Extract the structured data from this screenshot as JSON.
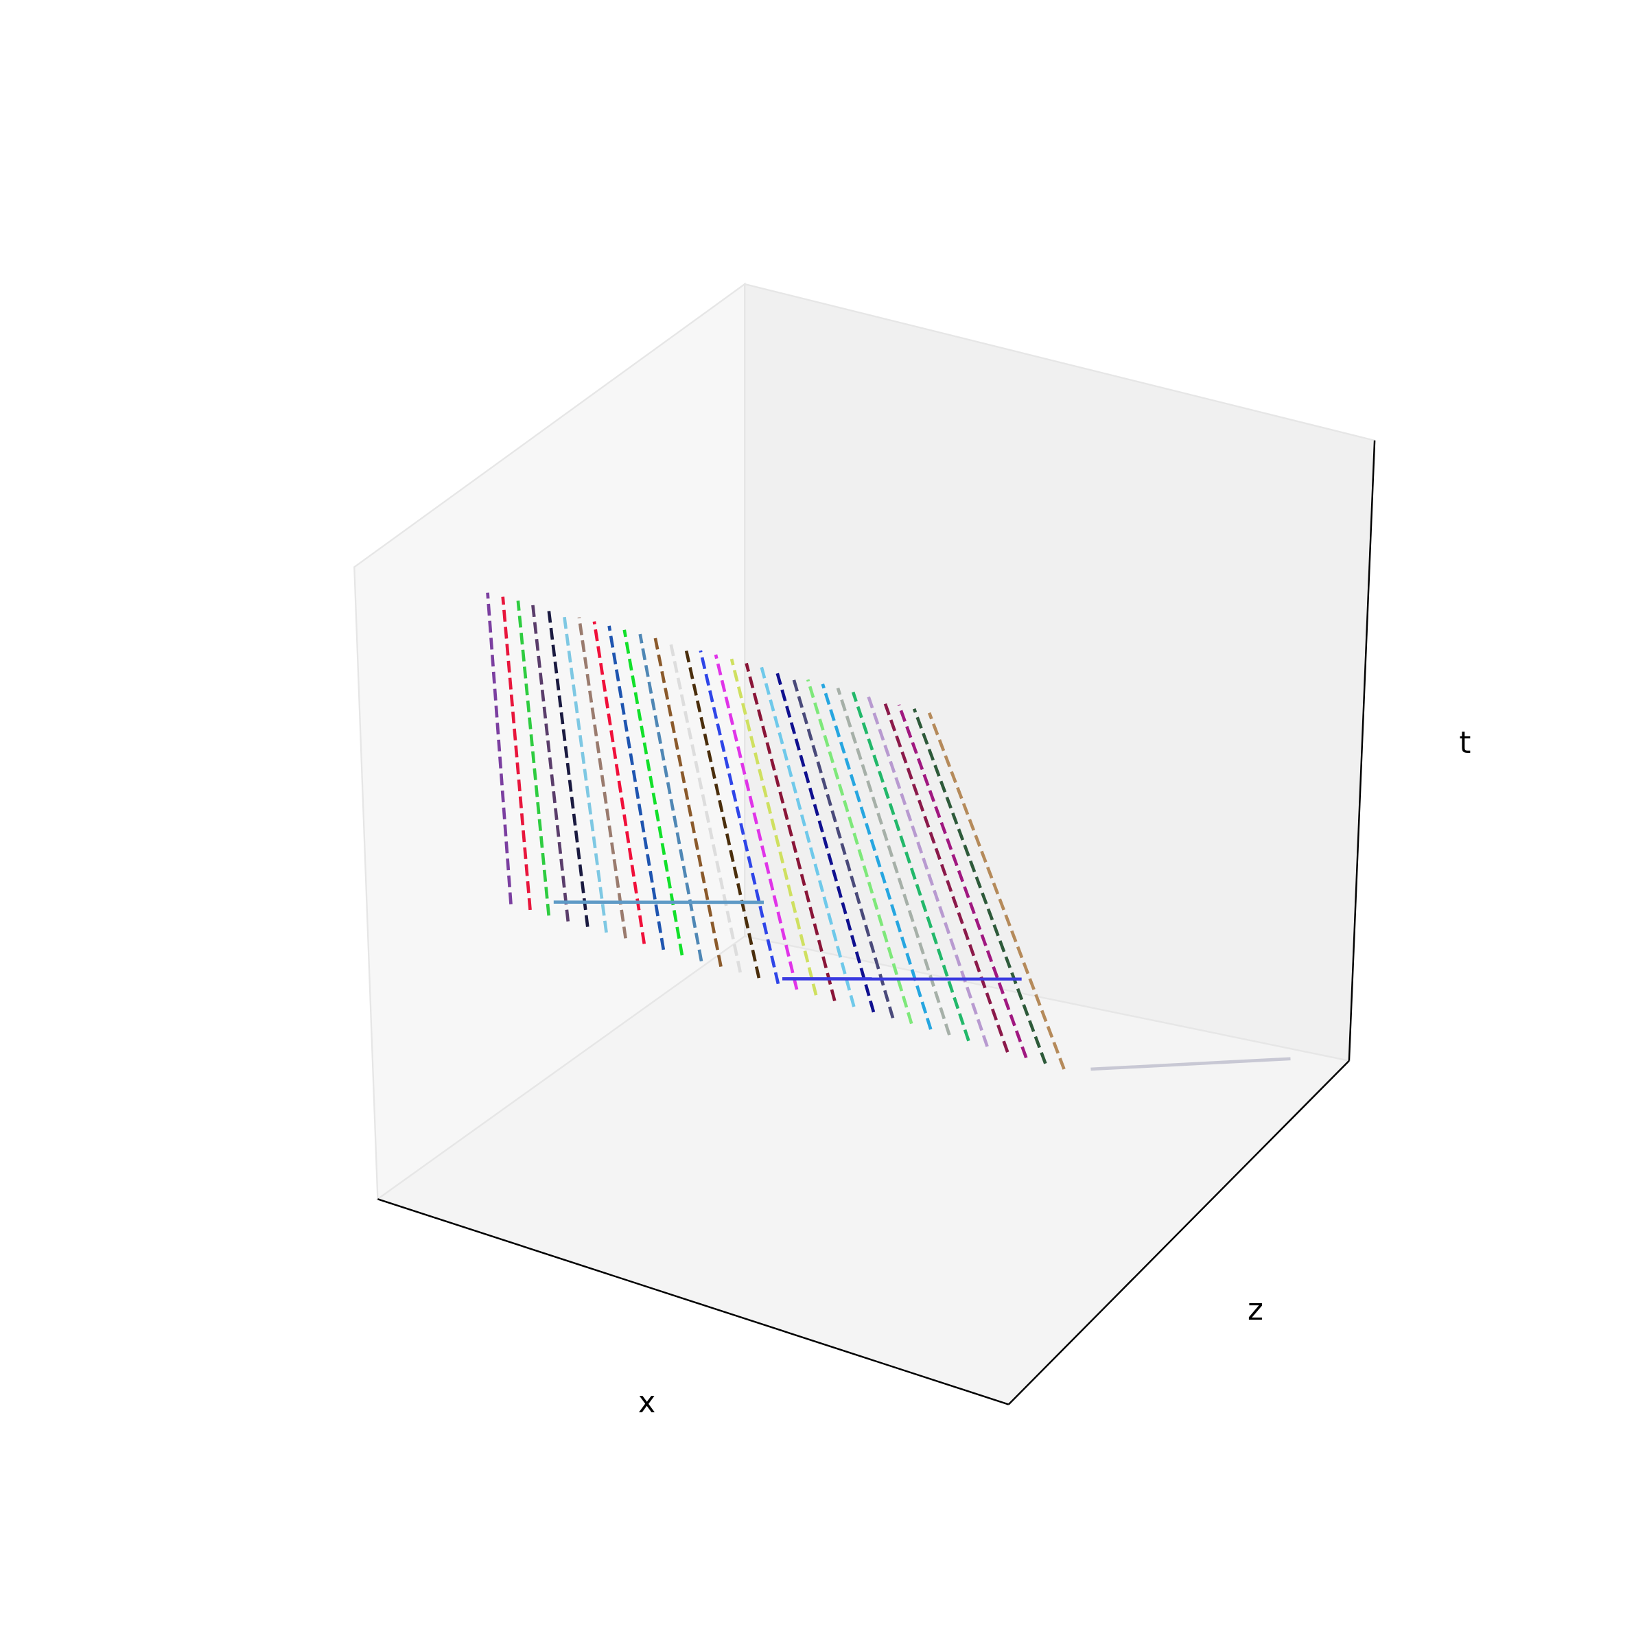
{
  "chart_data": {
    "type": "line3d",
    "xlabel": "x",
    "zlabel": "z",
    "tlabel": "t",
    "xlim": [
      0,
      1
    ],
    "zlim": [
      0,
      1
    ],
    "tlim": [
      0,
      1
    ],
    "series": [
      {
        "color": "#7b3fa0",
        "style": "dashed",
        "x": [
          0.033,
          0.008
        ],
        "z": [
          0.33,
          0.308
        ],
        "t": [
          0.3,
          0.8
        ]
      },
      {
        "color": "#e8163c",
        "style": "dashed",
        "x": [
          0.063,
          0.031
        ],
        "z": [
          0.331,
          0.31
        ],
        "t": [
          0.3,
          0.8
        ]
      },
      {
        "color": "#2ecc40",
        "style": "dashed",
        "x": [
          0.092,
          0.054
        ],
        "z": [
          0.332,
          0.312
        ],
        "t": [
          0.3,
          0.8
        ]
      },
      {
        "color": "#5a3d6b",
        "style": "dashed",
        "x": [
          0.122,
          0.077
        ],
        "z": [
          0.333,
          0.313
        ],
        "t": [
          0.3,
          0.8
        ]
      },
      {
        "color": "#1a1a40",
        "style": "dashed",
        "x": [
          0.152,
          0.101
        ],
        "z": [
          0.335,
          0.315
        ],
        "t": [
          0.3,
          0.8
        ]
      },
      {
        "color": "#7ec8e3",
        "style": "dashed",
        "x": [
          0.181,
          0.124
        ],
        "z": [
          0.336,
          0.317
        ],
        "t": [
          0.3,
          0.8
        ]
      },
      {
        "color": "#9a7b6e",
        "style": "dashed",
        "x": [
          0.211,
          0.147
        ],
        "z": [
          0.337,
          0.319
        ],
        "t": [
          0.3,
          0.8
        ]
      },
      {
        "color": "#f0103a",
        "style": "dashed",
        "x": [
          0.24,
          0.17
        ],
        "z": [
          0.338,
          0.321
        ],
        "t": [
          0.3,
          0.8
        ]
      },
      {
        "color": "#1f55b0",
        "style": "dashed",
        "x": [
          0.27,
          0.193
        ],
        "z": [
          0.339,
          0.322
        ],
        "t": [
          0.3,
          0.8
        ]
      },
      {
        "color": "#12e02a",
        "style": "dashed",
        "x": [
          0.299,
          0.216
        ],
        "z": [
          0.34,
          0.324
        ],
        "t": [
          0.3,
          0.8
        ]
      },
      {
        "color": "#4f87b5",
        "style": "dashed",
        "x": [
          0.329,
          0.24
        ],
        "z": [
          0.341,
          0.326
        ],
        "t": [
          0.3,
          0.8
        ]
      },
      {
        "color": "#8b5a2b",
        "style": "dashed",
        "x": [
          0.359,
          0.263
        ],
        "z": [
          0.343,
          0.328
        ],
        "t": [
          0.3,
          0.8
        ]
      },
      {
        "color": "#dddddd",
        "style": "dashed",
        "x": [
          0.389,
          0.286
        ],
        "z": [
          0.344,
          0.33
        ],
        "t": [
          0.3,
          0.8
        ]
      },
      {
        "color": "#4a2e0c",
        "style": "dashed",
        "x": [
          0.418,
          0.309
        ],
        "z": [
          0.345,
          0.331
        ],
        "t": [
          0.3,
          0.8
        ]
      },
      {
        "color": "#2f45e8",
        "style": "dashed",
        "x": [
          0.448,
          0.332
        ],
        "z": [
          0.346,
          0.333
        ],
        "t": [
          0.3,
          0.8
        ]
      },
      {
        "color": "#e034e8",
        "style": "dashed",
        "x": [
          0.477,
          0.355
        ],
        "z": [
          0.347,
          0.335
        ],
        "t": [
          0.3,
          0.8
        ]
      },
      {
        "color": "#cfe060",
        "style": "dashed",
        "x": [
          0.507,
          0.379
        ],
        "z": [
          0.348,
          0.337
        ],
        "t": [
          0.3,
          0.8
        ]
      },
      {
        "color": "#8a1538",
        "style": "dashed",
        "x": [
          0.536,
          0.402
        ],
        "z": [
          0.349,
          0.338
        ],
        "t": [
          0.3,
          0.8
        ]
      },
      {
        "color": "#6fc9ea",
        "style": "dashed",
        "x": [
          0.566,
          0.425
        ],
        "z": [
          0.35,
          0.34
        ],
        "t": [
          0.3,
          0.8
        ]
      },
      {
        "color": "#10108f",
        "style": "dashed",
        "x": [
          0.596,
          0.448
        ],
        "z": [
          0.352,
          0.342
        ],
        "t": [
          0.3,
          0.8
        ]
      },
      {
        "color": "#4a4a7a",
        "style": "dashed",
        "x": [
          0.626,
          0.472
        ],
        "z": [
          0.353,
          0.344
        ],
        "t": [
          0.3,
          0.8
        ]
      },
      {
        "color": "#7ee87a",
        "style": "dashed",
        "x": [
          0.655,
          0.495
        ],
        "z": [
          0.354,
          0.346
        ],
        "t": [
          0.3,
          0.8
        ]
      },
      {
        "color": "#26a6e0",
        "style": "dashed",
        "x": [
          0.685,
          0.518
        ],
        "z": [
          0.355,
          0.347
        ],
        "t": [
          0.3,
          0.8
        ]
      },
      {
        "color": "#a6b0a8",
        "style": "dashed",
        "x": [
          0.714,
          0.541
        ],
        "z": [
          0.356,
          0.349
        ],
        "t": [
          0.3,
          0.8
        ]
      },
      {
        "color": "#22b86a",
        "style": "dashed",
        "x": [
          0.744,
          0.564
        ],
        "z": [
          0.357,
          0.351
        ],
        "t": [
          0.3,
          0.8
        ]
      },
      {
        "color": "#b89ad0",
        "style": "dashed",
        "x": [
          0.773,
          0.587
        ],
        "z": [
          0.358,
          0.353
        ],
        "t": [
          0.3,
          0.8
        ]
      },
      {
        "color": "#8b1a4a",
        "style": "dashed",
        "x": [
          0.804,
          0.611
        ],
        "z": [
          0.36,
          0.355
        ],
        "t": [
          0.3,
          0.8
        ]
      },
      {
        "color": "#a01880",
        "style": "dashed",
        "x": [
          0.833,
          0.634
        ],
        "z": [
          0.361,
          0.356
        ],
        "t": [
          0.3,
          0.8
        ]
      },
      {
        "color": "#2e5a3a",
        "style": "dashed",
        "x": [
          0.863,
          0.657
        ],
        "z": [
          0.362,
          0.358
        ],
        "t": [
          0.3,
          0.8
        ]
      },
      {
        "color": "#b58a5a",
        "style": "dashed",
        "x": [
          0.892,
          0.68
        ],
        "z": [
          0.363,
          0.36
        ],
        "t": [
          0.3,
          0.8
        ]
      },
      {
        "color": "#5e9ac6",
        "style": "solid",
        "x": [
          0.082,
          0.334
        ],
        "z": [
          0.365,
          0.515
        ],
        "t": [
          0.3,
          0.3
        ]
      },
      {
        "color": "#3a3ae0",
        "style": "solid",
        "x": [
          0.447,
          0.734
        ],
        "z": [
          0.36,
          0.531
        ],
        "t": [
          0.3,
          0.3
        ]
      },
      {
        "color": "#c8c8d4",
        "style": "solid",
        "x": [
          0.924,
          1.151
        ],
        "z": [
          0.382,
          0.548
        ],
        "t": [
          0.3,
          0.3
        ]
      }
    ]
  }
}
